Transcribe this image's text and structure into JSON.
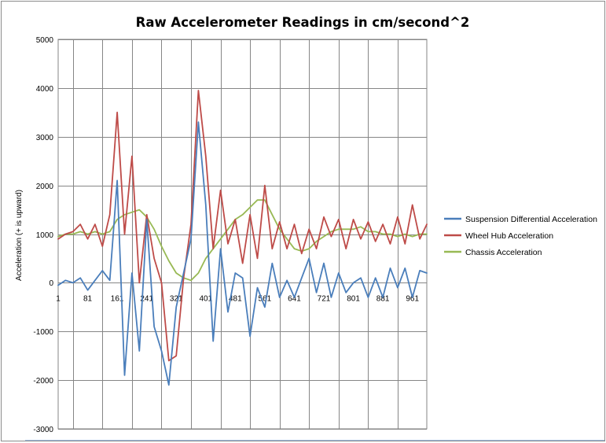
{
  "chart_data": {
    "type": "line",
    "title": "Raw Accelerometer  Readings in cm/second^2",
    "xlabel": "",
    "ylabel": "Acceleration (+ is upward)",
    "ylim": [
      -3000,
      5000
    ],
    "yticks": [
      5000,
      4000,
      3000,
      2000,
      1000,
      0,
      -1000,
      -2000,
      -3000
    ],
    "xlim": [
      1,
      1000
    ],
    "xtick_labels": [
      1,
      81,
      161,
      241,
      321,
      401,
      481,
      561,
      641,
      721,
      801,
      881,
      961
    ],
    "grid": "horizontal and vertical",
    "legend_position": "right",
    "x": [
      1,
      21,
      41,
      61,
      81,
      101,
      121,
      141,
      161,
      181,
      201,
      221,
      241,
      261,
      281,
      301,
      321,
      341,
      361,
      381,
      401,
      421,
      441,
      461,
      481,
      501,
      521,
      541,
      561,
      581,
      601,
      621,
      641,
      661,
      681,
      701,
      721,
      741,
      761,
      781,
      801,
      821,
      841,
      861,
      881,
      901,
      921,
      941,
      961,
      981,
      1000
    ],
    "series": [
      {
        "name": "Suspension Differential Acceleration",
        "color": "#4a7ebb",
        "values": [
          -50,
          50,
          0,
          100,
          -150,
          50,
          250,
          50,
          2100,
          -1900,
          200,
          -1400,
          1300,
          -900,
          -1400,
          -2100,
          -500,
          200,
          900,
          3300,
          1600,
          -1200,
          700,
          -600,
          200,
          100,
          -1100,
          -100,
          -500,
          400,
          -300,
          50,
          -300,
          100,
          500,
          -200,
          400,
          -300,
          200,
          -200,
          0,
          100,
          -300,
          100,
          -300,
          300,
          -100,
          300,
          -300,
          250,
          200
        ]
      },
      {
        "name": "Wheel Hub Acceleration",
        "color": "#be4b48",
        "values": [
          900,
          1000,
          1050,
          1200,
          900,
          1200,
          750,
          1400,
          3500,
          1000,
          2600,
          0,
          1400,
          500,
          0,
          -1600,
          -1500,
          100,
          1200,
          3950,
          2600,
          700,
          1900,
          800,
          1300,
          400,
          1400,
          500,
          2000,
          700,
          1250,
          700,
          1200,
          600,
          1100,
          700,
          1350,
          950,
          1300,
          700,
          1300,
          900,
          1250,
          850,
          1200,
          800,
          1350,
          800,
          1600,
          900,
          1200
        ]
      },
      {
        "name": "Chassis Acceleration",
        "color": "#98b954",
        "values": [
          950,
          1000,
          1000,
          1050,
          1000,
          1050,
          1000,
          1050,
          1300,
          1400,
          1450,
          1500,
          1350,
          1100,
          750,
          450,
          200,
          100,
          50,
          200,
          500,
          700,
          900,
          1100,
          1300,
          1400,
          1550,
          1700,
          1700,
          1400,
          1100,
          900,
          700,
          650,
          700,
          850,
          950,
          1050,
          1100,
          1100,
          1100,
          1150,
          1050,
          1050,
          1000,
          1000,
          950,
          1000,
          950,
          1000,
          1000
        ]
      }
    ]
  }
}
